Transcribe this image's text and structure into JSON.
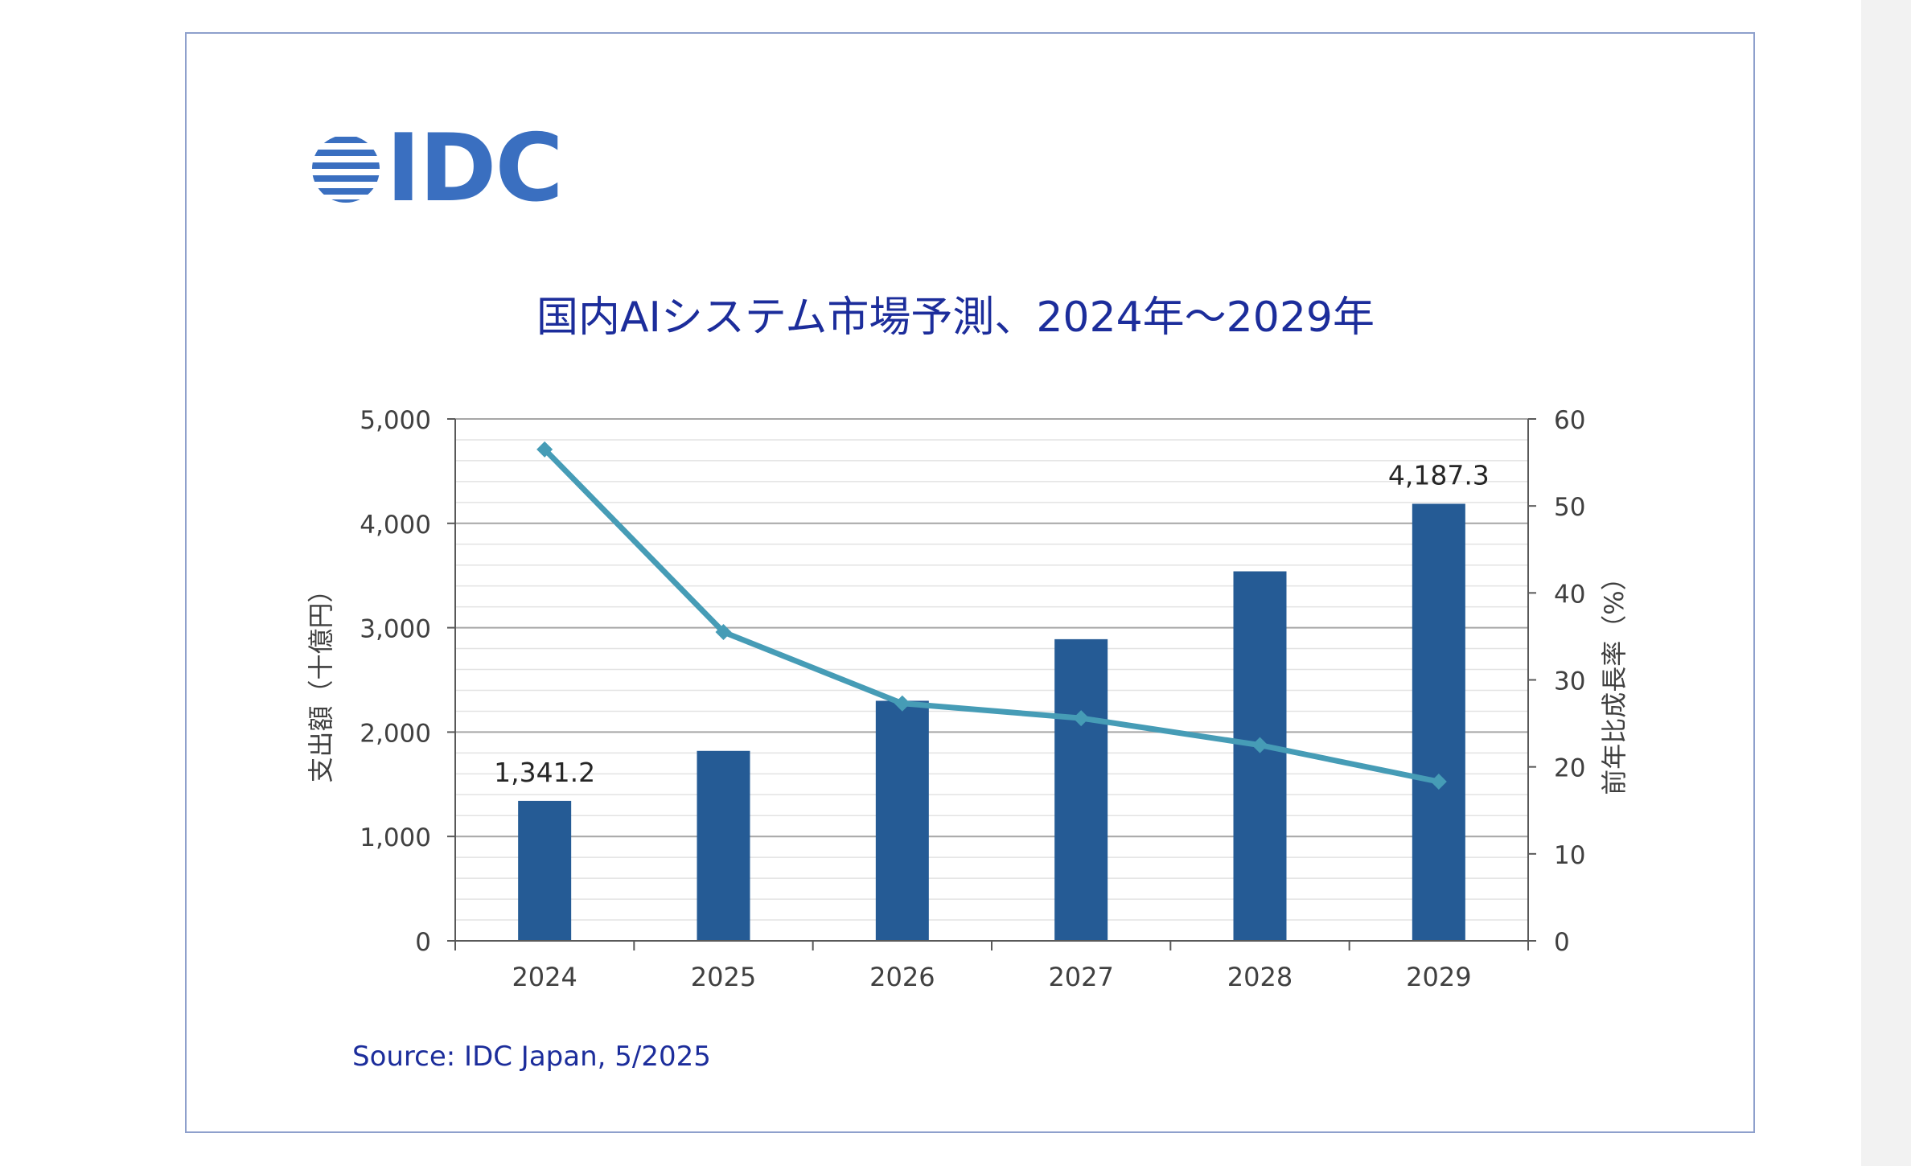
{
  "logo": {
    "text": "IDC"
  },
  "source": "Source: IDC Japan, 5/2025",
  "colors": {
    "bar": "#255b95",
    "line": "#469cb6",
    "title": "#1c2d9b",
    "logo": "#3a6fc0"
  },
  "chart_data": {
    "type": "bar",
    "title": "国内AIシステム市場予測、2024年～2029年",
    "categories": [
      "2024",
      "2025",
      "2026",
      "2027",
      "2028",
      "2029"
    ],
    "series": [
      {
        "name": "",
        "type": "bar",
        "axis": "left",
        "values": [
          1341.2,
          1820,
          2300,
          2890,
          3540,
          4187.3
        ]
      },
      {
        "name": "",
        "type": "line",
        "axis": "right",
        "values": [
          56.5,
          35.5,
          27.3,
          25.6,
          22.5,
          18.3
        ]
      }
    ],
    "data_labels": [
      {
        "category": "2024",
        "text": "1,341.2"
      },
      {
        "category": "2029",
        "text": "4,187.3"
      }
    ],
    "ylabel": "支出額（十億円）",
    "y2label": "前年比成長率（%）",
    "ylim": [
      0,
      5000
    ],
    "y2lim": [
      0,
      60
    ],
    "yticks": [
      "0",
      "1,000",
      "2,000",
      "3,000",
      "4,000",
      "5,000"
    ],
    "y2ticks": [
      "0",
      "10",
      "20",
      "30",
      "40",
      "50",
      "60"
    ],
    "grid": true,
    "legend": "none"
  }
}
